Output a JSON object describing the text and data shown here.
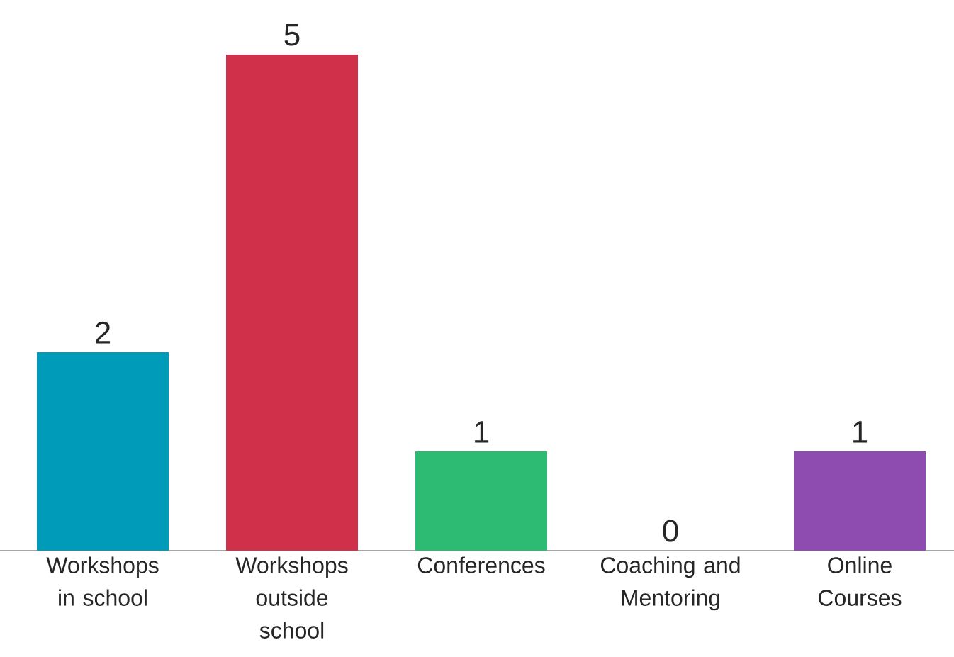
{
  "chart_data": {
    "type": "bar",
    "categories": [
      "Workshops in school",
      "Workshops outside school",
      "Conferences",
      "Coaching and Mentoring",
      "Online Courses"
    ],
    "values": [
      2,
      5,
      1,
      0,
      1
    ],
    "colors": [
      "#009bb8",
      "#d1304a",
      "#2dba72",
      null,
      "#8e4bb0"
    ],
    "data_labels": true
  }
}
